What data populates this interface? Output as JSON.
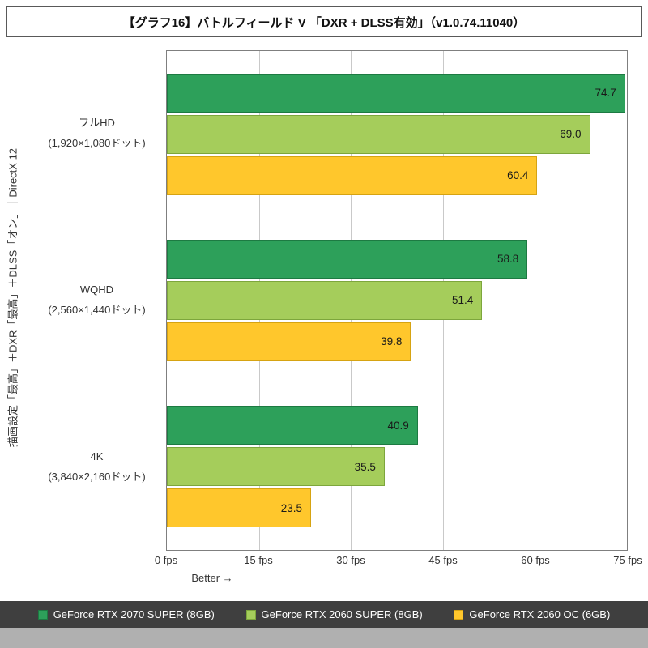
{
  "title": "【グラフ16】バトルフィールド V 「DXR + DLSS有効」（v1.0.74.11040）",
  "y_axis_label": "描画設定「最高」＋DXR「最高」＋DLSS「オン」｜DirectX 12",
  "better_label": "Better →",
  "chart_data": {
    "type": "bar",
    "orientation": "horizontal",
    "title": "【グラフ16】バトルフィールド V 「DXR + DLSS有効」（v1.0.74.11040）",
    "ylabel": "描画設定「最高」＋DXR「最高」＋DLSS「オン」｜DirectX 12",
    "xlabel": "Better →",
    "xlim": [
      0,
      75
    ],
    "grid": true,
    "legend_position": "bottom",
    "x_ticks": [
      "0 fps",
      "15 fps",
      "30 fps",
      "45 fps",
      "60 fps",
      "75 fps"
    ],
    "x_tick_values": [
      0,
      15,
      30,
      45,
      60,
      75
    ],
    "categories": [
      {
        "name": "フルHD",
        "sub": "(1,920×1,080ドット)"
      },
      {
        "name": "WQHD",
        "sub": "(2,560×1,440ドット)"
      },
      {
        "name": "4K",
        "sub": "(3,840×2,160ドット)"
      }
    ],
    "series": [
      {
        "name": "GeForce RTX 2070 SUPER (8GB)",
        "color": "#2da05a",
        "border": "#1d7a42",
        "values": [
          74.7,
          58.8,
          40.9
        ]
      },
      {
        "name": "GeForce RTX 2060 SUPER (8GB)",
        "color": "#a5cd5b",
        "border": "#7da63c",
        "values": [
          69.0,
          51.4,
          35.5
        ]
      },
      {
        "name": "GeForce RTX 2060 OC (6GB)",
        "color": "#ffc72c",
        "border": "#d6a312",
        "values": [
          60.4,
          39.8,
          23.5
        ]
      }
    ]
  }
}
